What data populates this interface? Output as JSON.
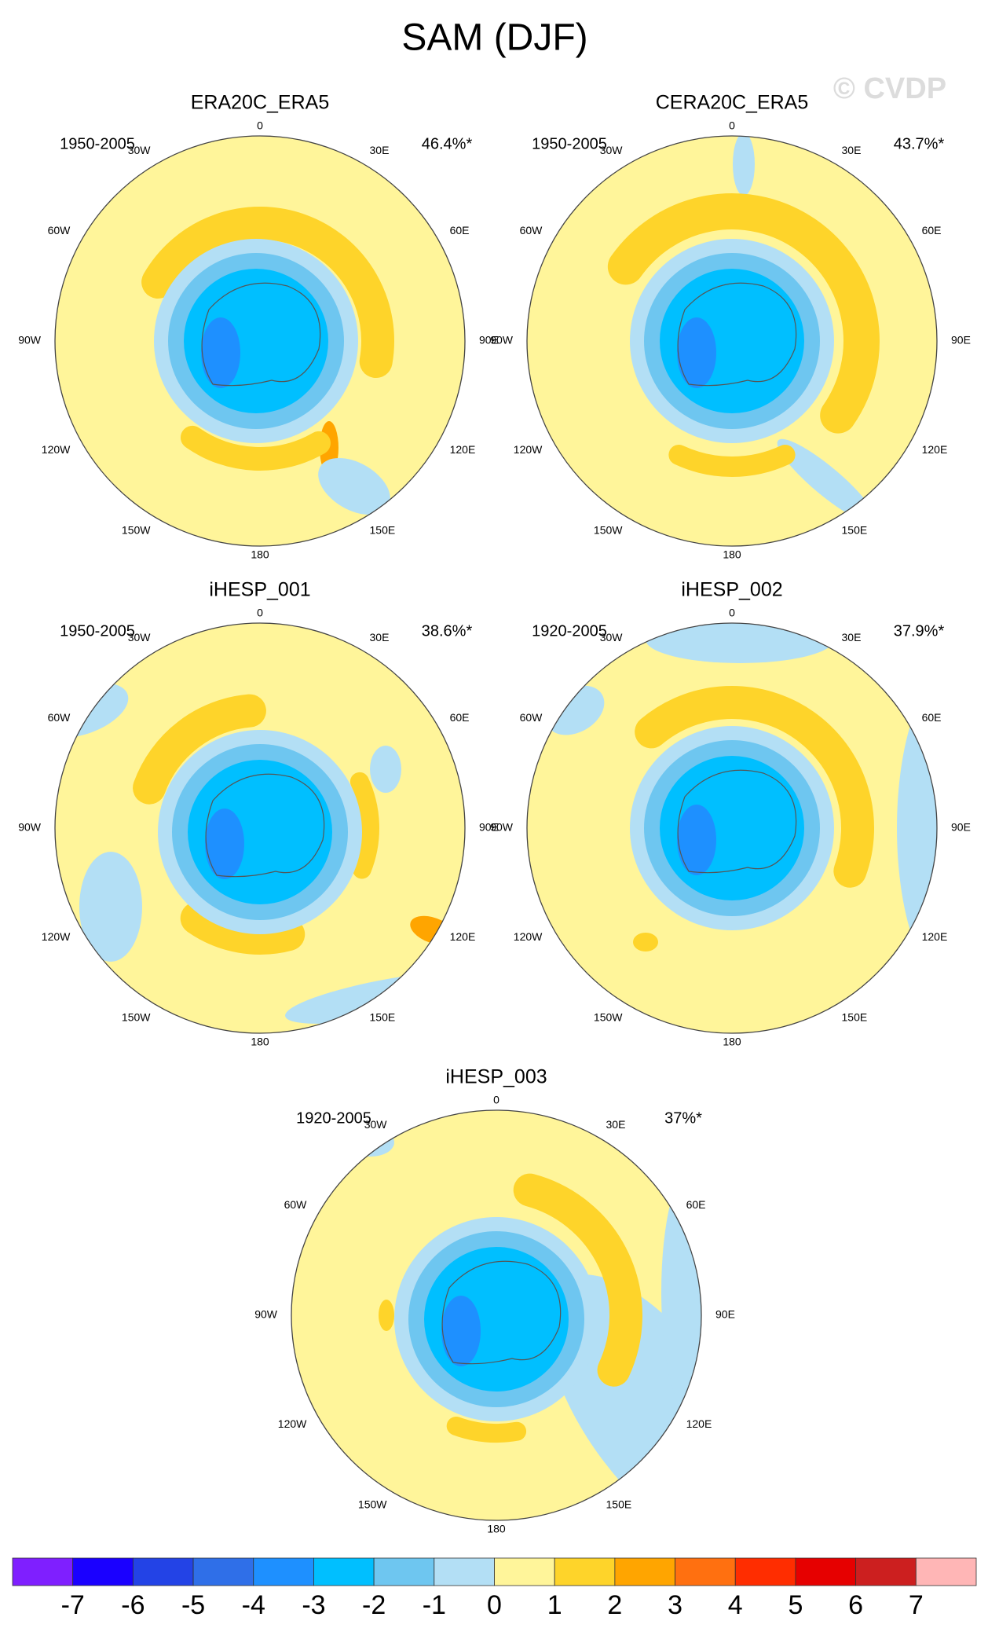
{
  "title": "SAM (DJF)",
  "watermark": "© CVDP",
  "longitude_labels": [
    "0",
    "30E",
    "60E",
    "90E",
    "120E",
    "150E",
    "180",
    "150W",
    "120W",
    "90W",
    "60W",
    "30W"
  ],
  "panels": [
    {
      "title": "ERA20C_ERA5",
      "period": "1950-2005",
      "variance": "46.4%*"
    },
    {
      "title": "CERA20C_ERA5",
      "period": "1950-2005",
      "variance": "43.7%*"
    },
    {
      "title": "iHESP_001",
      "period": "1950-2005",
      "variance": "38.6%*"
    },
    {
      "title": "iHESP_002",
      "period": "1920-2005",
      "variance": "37.9%*"
    },
    {
      "title": "iHESP_003",
      "period": "1920-2005",
      "variance": "37%*"
    }
  ],
  "colorbar": {
    "colors": [
      "#7f1fff",
      "#1a00ff",
      "#2343e6",
      "#2f6fe8",
      "#1e90ff",
      "#00bfff",
      "#6ec6f0",
      "#b3dff5",
      "#fff59a",
      "#fed42a",
      "#ffa500",
      "#ff7010",
      "#ff2d00",
      "#e60000",
      "#cc1f1f",
      "#ffb6b6"
    ],
    "ticks": [
      -7,
      -6,
      -5,
      -4,
      -3,
      -2,
      -1,
      0,
      1,
      2,
      3,
      4,
      5,
      6,
      7
    ]
  }
}
